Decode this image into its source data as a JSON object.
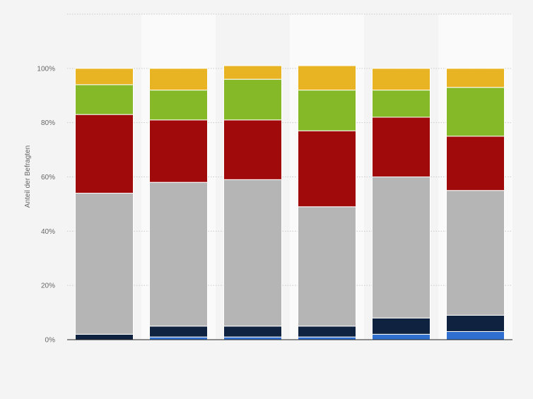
{
  "chart_data": {
    "type": "bar",
    "stacked": true,
    "title": "",
    "xlabel": "",
    "ylabel": "Anteil der Befragten",
    "ylim": [
      0,
      120
    ],
    "yticks": [
      0,
      20,
      40,
      60,
      80,
      100
    ],
    "ytick_labels": [
      "0%",
      "20%",
      "40%",
      "60%",
      "80%",
      "100%"
    ],
    "grid": true,
    "legend": "none",
    "categories": [
      "",
      "",
      "",
      "",
      "",
      ""
    ],
    "series": [
      {
        "color": "#2f6fd0",
        "values": [
          0,
          1,
          1,
          1,
          2,
          3
        ]
      },
      {
        "color": "#0f2340",
        "values": [
          2,
          4,
          4,
          4,
          6,
          6
        ]
      },
      {
        "color": "#b5b5b5",
        "values": [
          52,
          53,
          54,
          44,
          52,
          46
        ]
      },
      {
        "color": "#a10a0a",
        "values": [
          29,
          23,
          22,
          28,
          22,
          20
        ]
      },
      {
        "color": "#85b928",
        "values": [
          11,
          11,
          15,
          15,
          10,
          18
        ]
      },
      {
        "color": "#e9b424",
        "values": [
          6,
          8,
          5,
          9,
          8,
          7
        ]
      }
    ]
  }
}
